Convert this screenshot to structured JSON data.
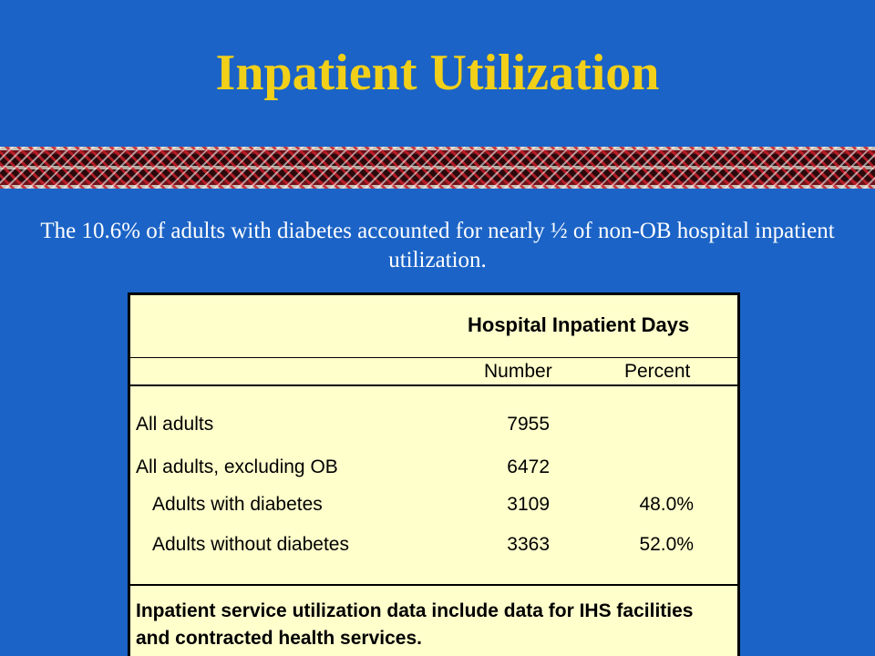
{
  "slide": {
    "title": "Inpatient Utilization",
    "subtitle": "The 10.6% of adults with diabetes accounted for nearly ½ of non-OB hospital inpatient utilization."
  },
  "table": {
    "header": "Hospital Inpatient Days",
    "col_number": "Number",
    "col_percent": "Percent",
    "rows": [
      {
        "label": "All adults",
        "number": "7955",
        "percent": ""
      },
      {
        "label": "All adults, excluding OB",
        "number": "6472",
        "percent": ""
      },
      {
        "label": "Adults with diabetes",
        "number": "3109",
        "percent": "48.0%"
      },
      {
        "label": "Adults without diabetes",
        "number": "3363",
        "percent": "52.0%"
      }
    ],
    "note": "Inpatient service utilization data include data for IHS facilities and contracted health services."
  },
  "colors": {
    "background": "#1b63c6",
    "title": "#f2d019",
    "panel": "#ffffcc"
  }
}
